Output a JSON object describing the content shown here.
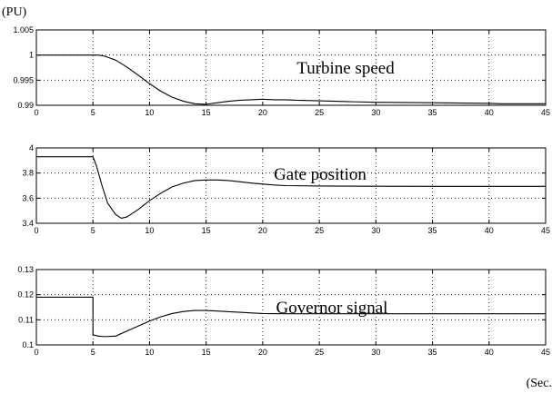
{
  "figure": {
    "y_unit": "(PU)",
    "x_unit": "(Sec."
  },
  "chart_data": [
    {
      "type": "line",
      "title": "Turbine speed",
      "xlim": [
        0,
        45
      ],
      "ylim": [
        0.99,
        1.005
      ],
      "xticks": [
        0,
        5,
        10,
        15,
        20,
        25,
        30,
        35,
        40,
        45
      ],
      "yticks": [
        0.99,
        0.995,
        1,
        1.005
      ],
      "ytick_labels": [
        "0.99",
        "0.995",
        "1",
        "1.005"
      ],
      "grid": true,
      "series": [
        {
          "x": [
            0,
            5.5,
            6,
            7,
            8,
            9,
            10,
            11,
            12,
            13,
            14,
            15,
            16,
            17,
            18,
            19,
            20,
            21,
            22,
            23,
            25,
            28,
            30,
            35,
            40,
            41,
            45
          ],
          "y": [
            1,
            1,
            0.9998,
            0.999,
            0.9976,
            0.996,
            0.9943,
            0.9928,
            0.9916,
            0.9908,
            0.9903,
            0.9902,
            0.9905,
            0.9908,
            0.991,
            0.9911,
            0.9912,
            0.9911,
            0.9911,
            0.991,
            0.9909,
            0.9907,
            0.9906,
            0.9905,
            0.9904,
            0.9903,
            0.9903
          ]
        }
      ]
    },
    {
      "type": "line",
      "title": "Gate position",
      "xlim": [
        0,
        45
      ],
      "ylim": [
        3.4,
        4
      ],
      "xticks": [
        0,
        5,
        10,
        15,
        20,
        25,
        30,
        35,
        40,
        45
      ],
      "yticks": [
        3.4,
        3.6,
        3.8,
        4
      ],
      "ytick_labels": [
        "3.4",
        "3.6",
        "3.8",
        "4"
      ],
      "grid": true,
      "series": [
        {
          "x": [
            0,
            5,
            5.3,
            5.8,
            6.3,
            7,
            7.5,
            8,
            9,
            10,
            11,
            12,
            13,
            14,
            15,
            16,
            17,
            18,
            19,
            20,
            21,
            22,
            25,
            30,
            35,
            40,
            45
          ],
          "y": [
            3.93,
            3.93,
            3.86,
            3.7,
            3.56,
            3.47,
            3.44,
            3.45,
            3.51,
            3.58,
            3.64,
            3.69,
            3.72,
            3.74,
            3.745,
            3.745,
            3.74,
            3.73,
            3.72,
            3.712,
            3.705,
            3.7,
            3.697,
            3.695,
            3.694,
            3.694,
            3.694
          ]
        }
      ]
    },
    {
      "type": "line",
      "title": "Governor signal",
      "xlim": [
        0,
        45
      ],
      "ylim": [
        0.1,
        0.13
      ],
      "xticks": [
        0,
        5,
        10,
        15,
        20,
        25,
        30,
        35,
        40,
        45
      ],
      "yticks": [
        0.1,
        0.11,
        0.12,
        0.13
      ],
      "ytick_labels": [
        "0.1",
        "0.11",
        "0.12",
        "0.13"
      ],
      "grid": true,
      "series": [
        {
          "x": [
            0,
            5,
            5,
            5.5,
            6,
            7,
            8,
            9,
            10,
            11,
            12,
            13,
            14,
            15,
            16,
            17,
            18,
            19,
            20,
            22,
            25,
            30,
            35,
            40,
            45
          ],
          "y": [
            0.119,
            0.119,
            0.104,
            0.1035,
            0.1033,
            0.1035,
            0.1055,
            0.1075,
            0.1095,
            0.1112,
            0.1125,
            0.1133,
            0.1137,
            0.1137,
            0.1135,
            0.1132,
            0.113,
            0.1127,
            0.1125,
            0.1124,
            0.1124,
            0.1124,
            0.1124,
            0.1124,
            0.1124
          ]
        }
      ]
    }
  ]
}
